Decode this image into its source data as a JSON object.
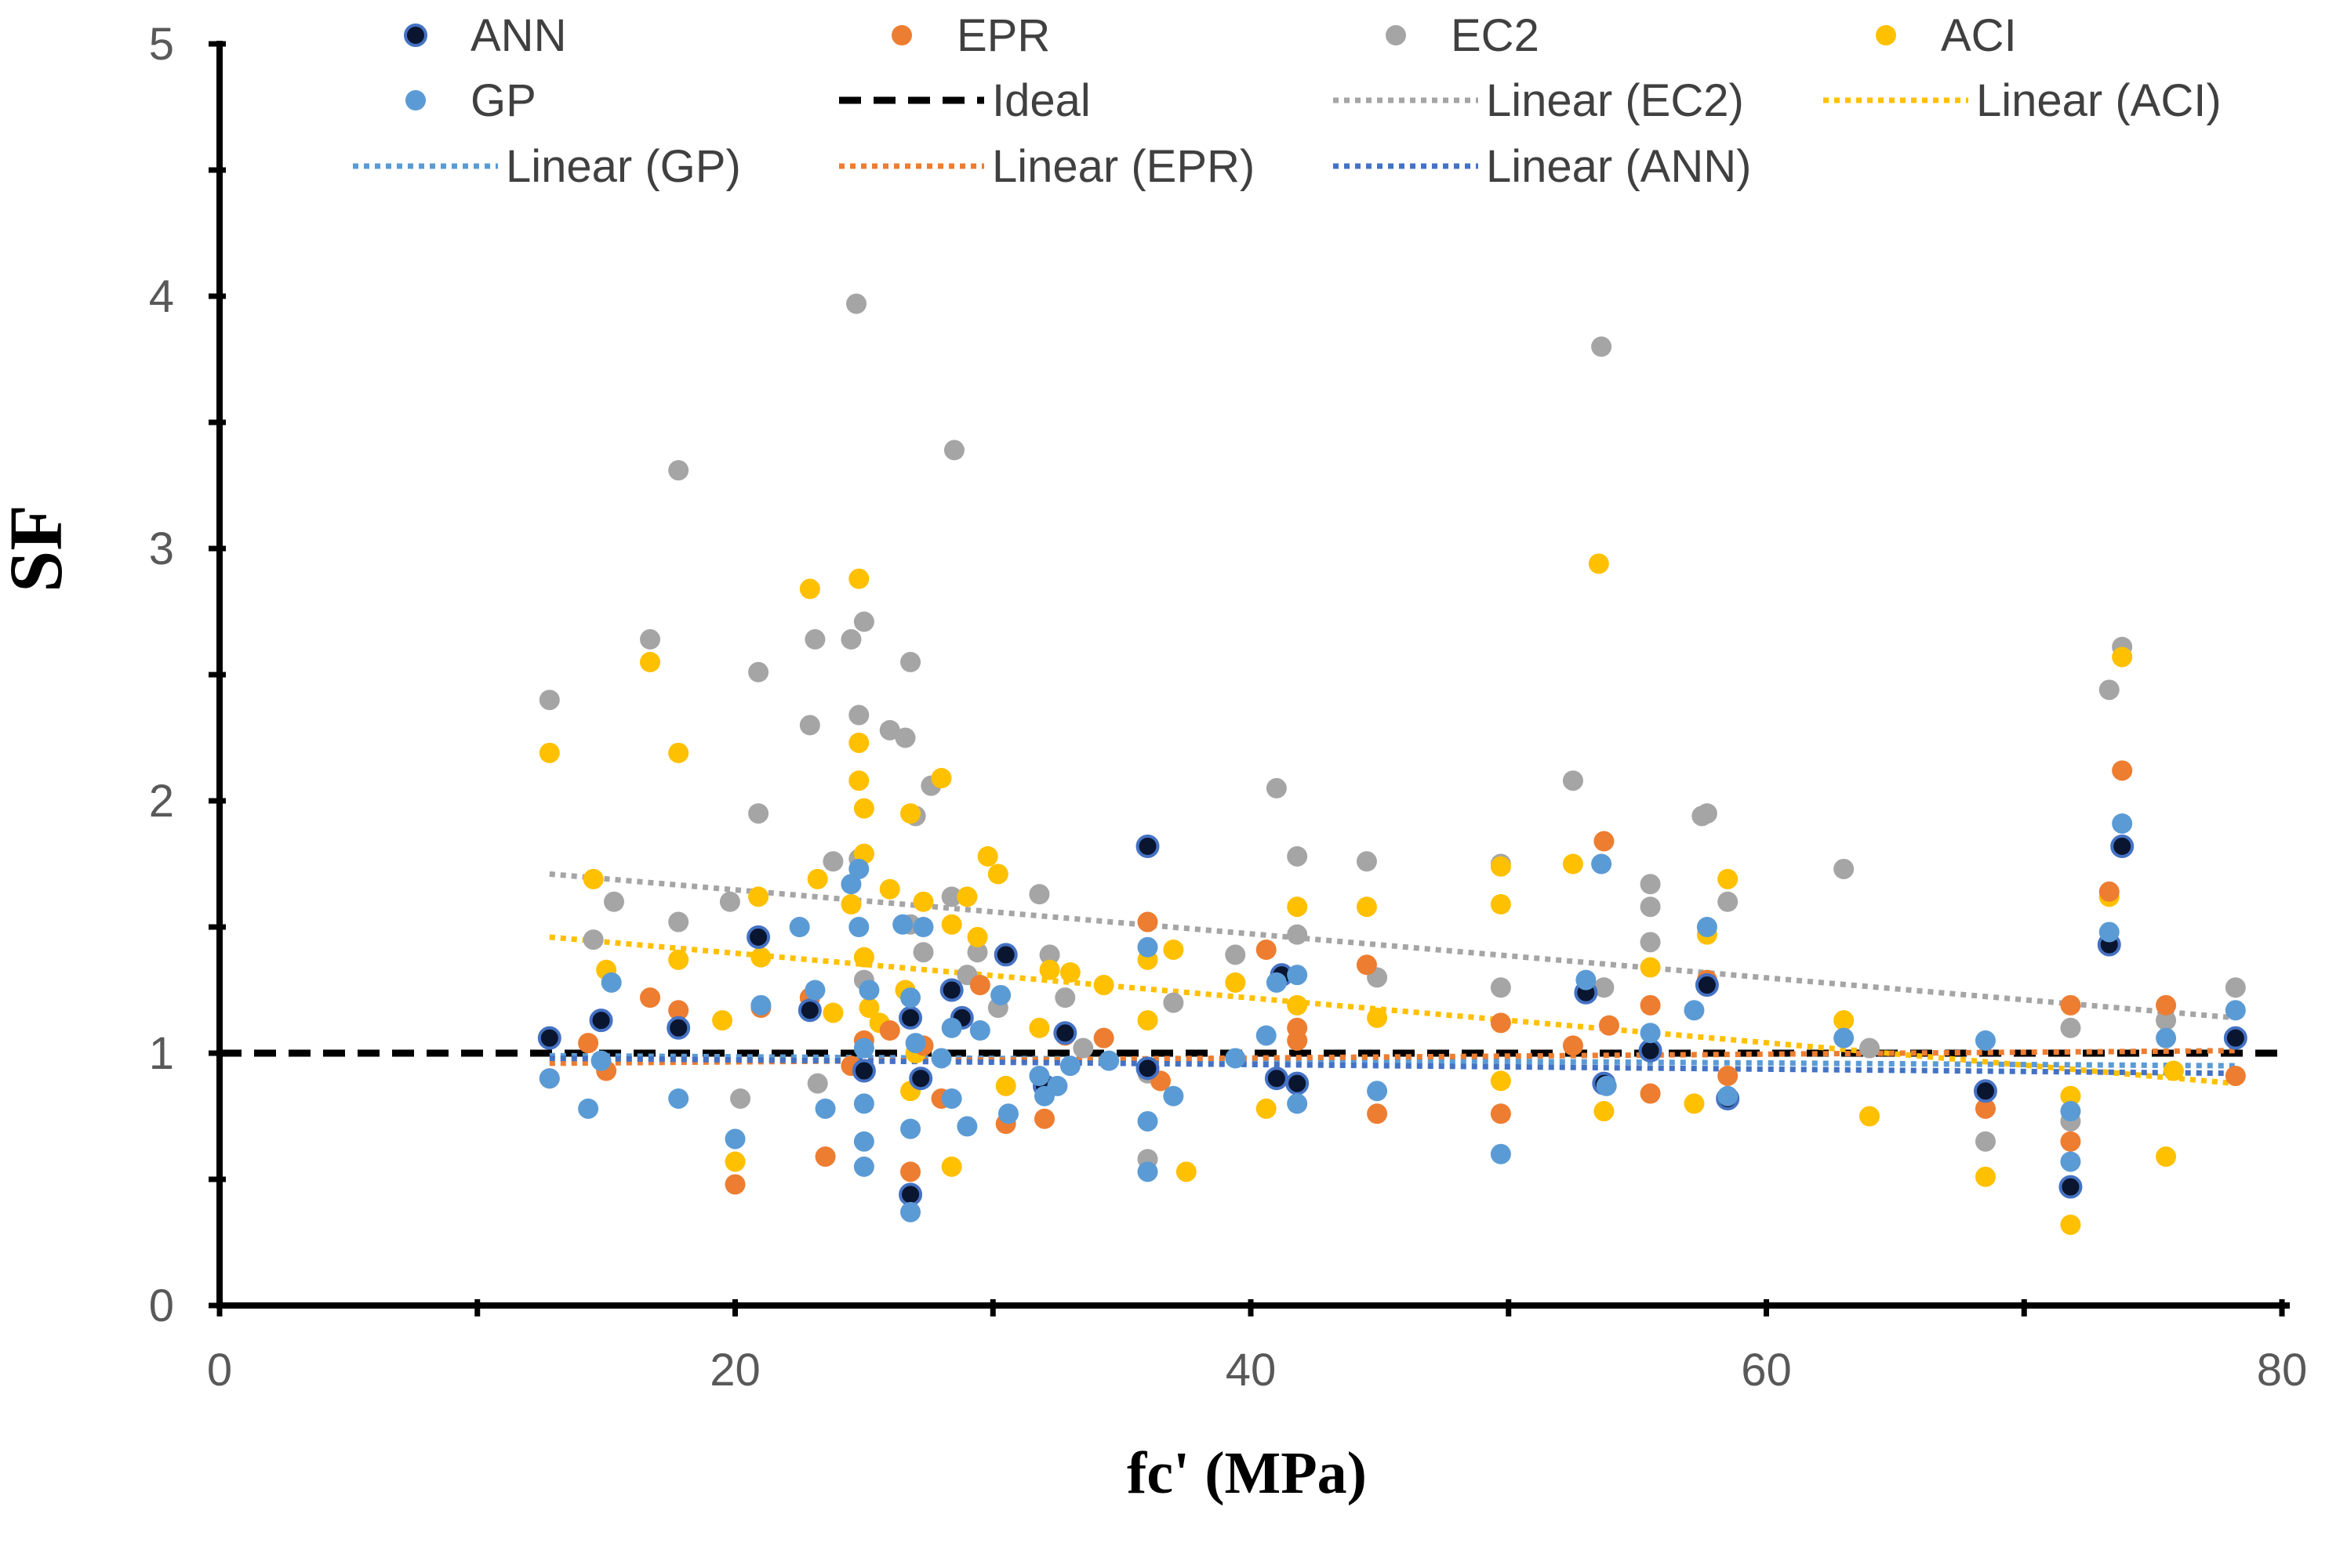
{
  "chart_data": {
    "type": "scatter",
    "title": "",
    "xlabel": "fc' (MPa)",
    "ylabel": "SF",
    "xlim": [
      0,
      80
    ],
    "ylim": [
      0,
      5
    ],
    "x_ticks": [
      0,
      20,
      40,
      60,
      80
    ],
    "y_ticks": [
      0,
      1,
      2,
      3,
      4,
      5
    ],
    "grid": false,
    "legend_position": "top",
    "series": [
      {
        "name": "EC2",
        "color": "#A5A5A5",
        "x": [
          12.8,
          14.5,
          15.3,
          16.7,
          17.8,
          17.8,
          19.8,
          20.2,
          20.9,
          20.9,
          22.9,
          23.1,
          23.2,
          23.8,
          24.5,
          24.7,
          24.8,
          24.8,
          25.0,
          25.0,
          26.0,
          26.6,
          26.8,
          26.8,
          27.0,
          27.3,
          27.6,
          28.5,
          28.4,
          29.0,
          29.4,
          30.2,
          31.8,
          32.2,
          32.8,
          33.5,
          36.0,
          36.0,
          37.0,
          39.4,
          41.0,
          41.8,
          41.8,
          44.5,
          44.9,
          49.7,
          49.7,
          52.5,
          53.6,
          53.7,
          55.5,
          55.5,
          55.5,
          57.5,
          57.7,
          58.5,
          63.0,
          64.0,
          68.5,
          71.8,
          71.8,
          73.3,
          73.8,
          75.5,
          78.2
        ],
        "y": [
          2.4,
          1.45,
          1.6,
          2.64,
          3.31,
          1.52,
          1.6,
          0.82,
          1.95,
          2.51,
          2.3,
          2.64,
          0.88,
          1.76,
          2.64,
          3.97,
          2.34,
          1.77,
          2.71,
          1.29,
          2.28,
          2.25,
          2.55,
          1.51,
          1.94,
          1.4,
          2.06,
          3.39,
          1.62,
          1.31,
          1.4,
          1.18,
          1.63,
          1.39,
          1.22,
          1.02,
          0.58,
          0.92,
          1.2,
          1.39,
          2.05,
          1.78,
          1.47,
          1.76,
          1.3,
          1.26,
          1.75,
          2.08,
          3.8,
          1.26,
          1.67,
          1.58,
          1.44,
          1.94,
          1.95,
          1.6,
          1.73,
          1.02,
          0.65,
          1.1,
          0.73,
          2.44,
          2.61,
          1.13,
          1.26
        ]
      },
      {
        "name": "ACI",
        "color": "#FFC000",
        "x": [
          12.8,
          14.5,
          15.0,
          16.7,
          17.8,
          17.8,
          19.5,
          20.0,
          20.9,
          21.0,
          22.9,
          23.2,
          23.8,
          24.5,
          24.8,
          24.8,
          24.8,
          25.0,
          25.0,
          25.0,
          25.2,
          25.6,
          26.0,
          26.6,
          26.8,
          26.8,
          27.0,
          27.3,
          28.0,
          28.4,
          28.4,
          29.0,
          29.4,
          29.8,
          30.2,
          30.5,
          31.8,
          32.2,
          33.0,
          34.3,
          36.0,
          36.0,
          36.5,
          37.0,
          37.5,
          39.4,
          40.6,
          41.8,
          41.8,
          44.5,
          44.9,
          49.7,
          49.7,
          49.7,
          52.5,
          53.5,
          53.7,
          55.5,
          57.2,
          57.7,
          58.5,
          63.0,
          64.0,
          68.5,
          71.8,
          71.8,
          73.3,
          73.8,
          75.5,
          75.8
        ],
        "y": [
          2.19,
          1.69,
          1.33,
          2.55,
          2.19,
          1.37,
          1.13,
          0.57,
          1.62,
          1.38,
          2.84,
          1.69,
          1.16,
          1.59,
          2.88,
          2.23,
          2.08,
          1.97,
          1.79,
          1.38,
          1.18,
          1.12,
          1.65,
          1.25,
          1.95,
          0.85,
          1.0,
          1.6,
          2.09,
          1.51,
          0.55,
          1.62,
          1.46,
          1.78,
          1.71,
          0.87,
          1.1,
          1.33,
          1.32,
          1.27,
          1.13,
          1.37,
          0.89,
          1.41,
          0.53,
          1.28,
          0.78,
          1.58,
          1.19,
          1.58,
          1.14,
          1.74,
          1.59,
          0.89,
          1.75,
          2.94,
          0.77,
          1.34,
          0.8,
          1.47,
          1.69,
          1.13,
          0.75,
          0.51,
          0.32,
          0.83,
          1.62,
          2.57,
          0.59,
          0.93
        ]
      },
      {
        "name": "EPR",
        "color": "#ED7D31",
        "x": [
          12.8,
          14.3,
          15.0,
          16.7,
          17.8,
          20.0,
          21.0,
          22.9,
          23.5,
          24.5,
          25.0,
          26.0,
          26.8,
          27.3,
          28.0,
          29.5,
          30.5,
          32.0,
          32.8,
          34.3,
          36.0,
          36.5,
          40.6,
          41.8,
          41.8,
          44.5,
          44.9,
          49.7,
          49.7,
          52.5,
          53.7,
          53.9,
          55.5,
          55.5,
          57.7,
          58.5,
          68.5,
          71.8,
          71.8,
          73.3,
          73.8,
          75.5,
          78.2
        ],
        "y": [
          0.9,
          1.04,
          0.93,
          1.22,
          1.17,
          0.48,
          1.18,
          1.22,
          0.59,
          0.95,
          1.05,
          1.09,
          0.53,
          1.03,
          0.82,
          1.27,
          0.72,
          0.74,
          1.07,
          1.06,
          1.52,
          0.89,
          1.41,
          1.1,
          1.05,
          1.35,
          0.76,
          1.12,
          0.76,
          1.03,
          1.84,
          1.11,
          1.19,
          0.84,
          1.29,
          0.91,
          0.78,
          1.19,
          0.65,
          1.64,
          2.12,
          1.19,
          0.91
        ]
      },
      {
        "name": "ANN",
        "color": "#4472C4",
        "x": [
          12.8,
          14.8,
          17.8,
          20.9,
          22.9,
          25.0,
          26.8,
          26.8,
          27.2,
          28.4,
          28.8,
          30.5,
          32.0,
          32.8,
          36.0,
          36.0,
          41.0,
          41.2,
          41.8,
          53.0,
          53.7,
          55.5,
          57.7,
          58.5,
          68.5,
          71.8,
          73.3,
          73.8,
          78.2
        ],
        "y": [
          1.06,
          1.13,
          1.1,
          1.46,
          1.17,
          0.93,
          0.44,
          1.14,
          0.9,
          1.25,
          1.14,
          1.39,
          0.87,
          1.08,
          1.82,
          0.94,
          0.9,
          1.31,
          0.88,
          1.24,
          0.88,
          1.01,
          1.27,
          0.82,
          0.85,
          0.47,
          1.43,
          1.82,
          1.06
        ]
      },
      {
        "name": "GP",
        "color": "#5B9BD5",
        "x": [
          12.8,
          14.3,
          14.8,
          15.2,
          17.8,
          20.0,
          21.0,
          22.5,
          23.1,
          23.5,
          24.5,
          24.8,
          24.8,
          25.0,
          25.0,
          25.0,
          25.0,
          25.2,
          26.5,
          26.8,
          26.8,
          26.8,
          27.0,
          27.3,
          28.0,
          28.4,
          28.4,
          29.0,
          29.5,
          30.3,
          30.6,
          31.8,
          32.0,
          32.5,
          33.0,
          34.5,
          36.0,
          36.0,
          36.0,
          37.0,
          39.4,
          40.6,
          41.0,
          41.8,
          41.8,
          44.9,
          49.7,
          53.0,
          53.6,
          53.8,
          55.5,
          57.2,
          57.7,
          58.5,
          63.0,
          68.5,
          71.8,
          71.8,
          73.3,
          73.8,
          75.5,
          78.2
        ],
        "y": [
          0.9,
          0.78,
          0.97,
          1.28,
          0.82,
          0.66,
          1.19,
          1.5,
          1.25,
          0.78,
          1.67,
          1.73,
          1.5,
          1.02,
          0.8,
          0.65,
          0.55,
          1.25,
          1.51,
          0.7,
          0.37,
          1.22,
          1.04,
          1.5,
          0.98,
          1.1,
          0.82,
          0.71,
          1.09,
          1.23,
          0.76,
          0.91,
          0.83,
          0.87,
          0.95,
          0.97,
          0.73,
          0.53,
          1.42,
          0.83,
          0.98,
          1.07,
          1.28,
          1.31,
          0.8,
          0.85,
          0.6,
          1.29,
          1.75,
          0.87,
          1.08,
          1.17,
          1.5,
          0.83,
          1.06,
          1.05,
          0.77,
          0.57,
          1.48,
          1.91,
          1.06,
          1.17
        ]
      }
    ],
    "trendlines": [
      {
        "name": "Ideal",
        "color": "#000000",
        "style": "dashed",
        "x": [
          0,
          80
        ],
        "y": [
          1.0,
          1.0
        ]
      },
      {
        "name": "Linear (EC2)",
        "color": "#A5A5A5",
        "style": "dotted",
        "x": [
          12.8,
          78.2
        ],
        "y": [
          1.71,
          1.14
        ]
      },
      {
        "name": "Linear (ACI)",
        "color": "#FFC000",
        "style": "dotted",
        "x": [
          12.8,
          78.2
        ],
        "y": [
          1.46,
          0.88
        ]
      },
      {
        "name": "Linear (GP)",
        "color": "#5B9BD5",
        "style": "dotted",
        "x": [
          12.8,
          78.2
        ],
        "y": [
          0.99,
          0.95
        ]
      },
      {
        "name": "Linear (EPR)",
        "color": "#ED7D31",
        "style": "dotted",
        "x": [
          12.8,
          78.2
        ],
        "y": [
          0.96,
          1.01
        ]
      },
      {
        "name": "Linear (ANN)",
        "color": "#4472C4",
        "style": "dotted",
        "x": [
          12.8,
          78.2
        ],
        "y": [
          0.98,
          0.92
        ]
      }
    ],
    "legend": [
      {
        "label": "ANN",
        "kind": "marker",
        "color": "#4472C4",
        "dark": true
      },
      {
        "label": "EPR",
        "kind": "marker",
        "color": "#ED7D31"
      },
      {
        "label": "EC2",
        "kind": "marker",
        "color": "#A5A5A5"
      },
      {
        "label": "ACI",
        "kind": "marker",
        "color": "#FFC000"
      },
      {
        "label": "GP",
        "kind": "marker",
        "color": "#5B9BD5"
      },
      {
        "label": "Ideal",
        "kind": "dashed",
        "color": "#000000"
      },
      {
        "label": "Linear (EC2)",
        "kind": "dotted",
        "color": "#A5A5A5"
      },
      {
        "label": "Linear (ACI)",
        "kind": "dotted",
        "color": "#FFC000"
      },
      {
        "label": "Linear (GP)",
        "kind": "dotted",
        "color": "#5B9BD5"
      },
      {
        "label": "Linear (EPR)",
        "kind": "dotted",
        "color": "#ED7D31"
      },
      {
        "label": "Linear (ANN)",
        "kind": "dotted",
        "color": "#4472C4"
      }
    ]
  }
}
